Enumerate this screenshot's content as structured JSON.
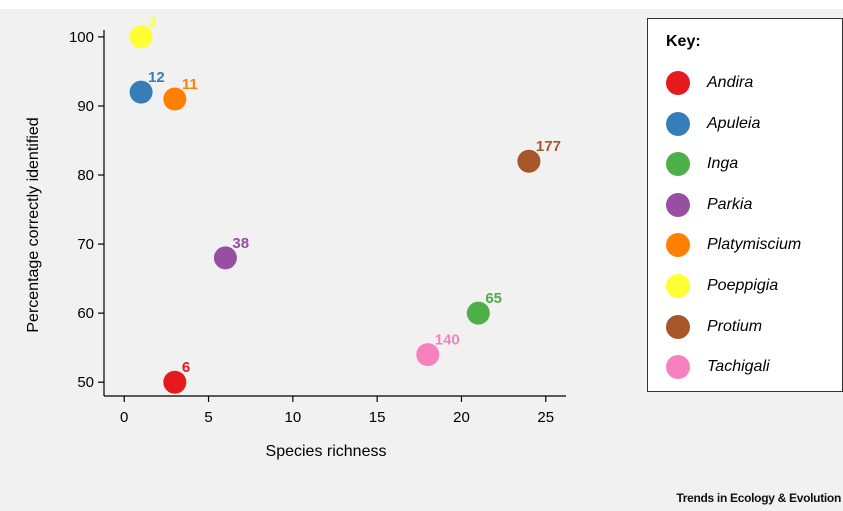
{
  "chart_data": {
    "type": "scatter",
    "xlabel": "Species richness",
    "ylabel": "Percentage correctly identified",
    "xlim": [
      -1.2,
      26.2
    ],
    "ylim": [
      48,
      101
    ],
    "xticks": [
      0,
      5,
      10,
      15,
      20,
      25
    ],
    "yticks": [
      50,
      60,
      70,
      80,
      90,
      100
    ],
    "grid": false,
    "legend_position": "right",
    "legend_title": "Key:",
    "series": [
      {
        "name": "Andira",
        "x": 3,
        "y": 50,
        "label": "6",
        "color": "#e41a1c"
      },
      {
        "name": "Apuleia",
        "x": 1,
        "y": 92,
        "label": "12",
        "color": "#377eb8"
      },
      {
        "name": "Inga",
        "x": 21,
        "y": 60,
        "label": "65",
        "color": "#4daf4a"
      },
      {
        "name": "Parkia",
        "x": 6,
        "y": 68,
        "label": "38",
        "color": "#984ea3"
      },
      {
        "name": "Platymiscium",
        "x": 3,
        "y": 91,
        "label": "11",
        "color": "#ff7f00"
      },
      {
        "name": "Poeppigia",
        "x": 1,
        "y": 100,
        "label": "3",
        "color": "#ffff33"
      },
      {
        "name": "Protium",
        "x": 24,
        "y": 82,
        "label": "177",
        "color": "#a65628"
      },
      {
        "name": "Tachigali",
        "x": 18,
        "y": 54,
        "label": "140",
        "color": "#f781bf"
      }
    ]
  },
  "footer": {
    "credit": "Trends in Ecology & Evolution"
  }
}
